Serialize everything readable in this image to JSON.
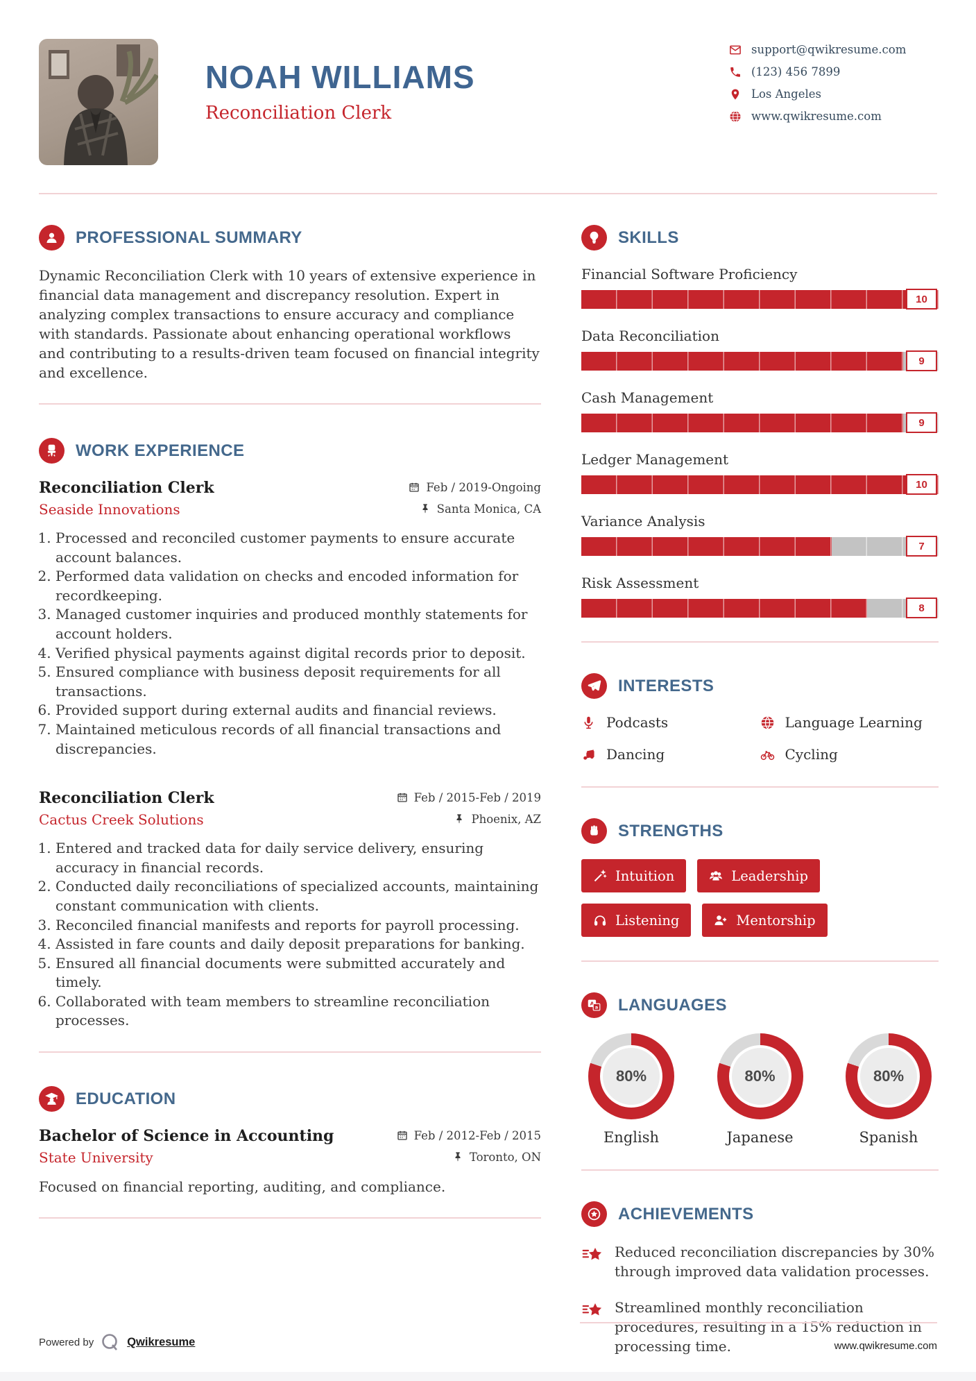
{
  "colors": {
    "accent": "#c5252c",
    "heading_blue": "#44688c",
    "name_blue": "#3f6591",
    "divider_pink": "#f2d2d5",
    "bar_track_gray": "#c3c3c3",
    "donut_gray": "#d9d9d9"
  },
  "header": {
    "name": "NOAH WILLIAMS",
    "title": "Reconciliation Clerk",
    "contact": [
      {
        "icon": "email-icon",
        "text": "support@qwikresume.com"
      },
      {
        "icon": "phone-icon",
        "text": "(123) 456 7899"
      },
      {
        "icon": "location-icon",
        "text": "Los Angeles"
      },
      {
        "icon": "globe-icon",
        "text": "www.qwikresume.com"
      }
    ]
  },
  "summary": {
    "heading": "PROFESSIONAL SUMMARY",
    "text": "Dynamic Reconciliation Clerk with 10 years of extensive experience in financial data management and discrepancy resolution. Expert in analyzing complex transactions to ensure accuracy and compliance with standards. Passionate about enhancing operational workflows and contributing to a results-driven team focused on financial integrity and excellence."
  },
  "work": {
    "heading": "WORK EXPERIENCE",
    "jobs": [
      {
        "title": "Reconciliation Clerk",
        "company": "Seaside Innovations",
        "dates": "Feb / 2019-Ongoing",
        "location": "Santa Monica, CA",
        "bullets": [
          "Processed and reconciled customer payments to ensure accurate account balances.",
          "Performed data validation on checks and encoded information for recordkeeping.",
          "Managed customer inquiries and produced monthly statements for account holders.",
          "Verified physical payments against digital records prior to deposit.",
          "Ensured compliance with business deposit requirements for all transactions.",
          "Provided support during external audits and financial reviews.",
          "Maintained meticulous records of all financial transactions and discrepancies."
        ]
      },
      {
        "title": "Reconciliation Clerk",
        "company": "Cactus Creek Solutions",
        "dates": "Feb / 2015-Feb / 2019",
        "location": "Phoenix, AZ",
        "bullets": [
          "Entered and tracked data for daily service delivery, ensuring accuracy in financial records.",
          "Conducted daily reconciliations of specialized accounts, maintaining constant communication with clients.",
          "Reconciled financial manifests and reports for payroll processing.",
          "Assisted in fare counts and daily deposit preparations for banking.",
          "Ensured all financial documents were submitted accurately and timely.",
          "Collaborated with team members to streamline reconciliation processes."
        ]
      }
    ]
  },
  "education": {
    "heading": "EDUCATION",
    "degree": "Bachelor of Science in Accounting",
    "school": "State University",
    "dates": "Feb / 2012-Feb / 2015",
    "location": "Toronto, ON",
    "note": "Focused on financial reporting, auditing, and compliance."
  },
  "skills": {
    "heading": "SKILLS",
    "items": [
      {
        "name": "Financial Software Proficiency",
        "value": 10,
        "max": 10
      },
      {
        "name": "Data Reconciliation",
        "value": 9,
        "max": 10
      },
      {
        "name": "Cash Management",
        "value": 9,
        "max": 10
      },
      {
        "name": "Ledger Management",
        "value": 10,
        "max": 10
      },
      {
        "name": "Variance Analysis",
        "value": 7,
        "max": 10
      },
      {
        "name": "Risk Assessment",
        "value": 8,
        "max": 10
      }
    ]
  },
  "interests": {
    "heading": "INTERESTS",
    "items": [
      {
        "icon": "microphone-icon",
        "label": "Podcasts"
      },
      {
        "icon": "globe-icon",
        "label": "Language Learning"
      },
      {
        "icon": "music-note-icon",
        "label": "Dancing"
      },
      {
        "icon": "bicycle-icon",
        "label": "Cycling"
      }
    ]
  },
  "strengths": {
    "heading": "STRENGTHS",
    "items": [
      {
        "icon": "magic-wand-icon",
        "label": "Intuition"
      },
      {
        "icon": "users-icon",
        "label": "Leadership"
      },
      {
        "icon": "headphones-icon",
        "label": "Listening"
      },
      {
        "icon": "person-plus-icon",
        "label": "Mentorship"
      }
    ]
  },
  "languages": {
    "heading": "LANGUAGES",
    "items": [
      {
        "label": "English",
        "percent": 80,
        "percent_label": "80%"
      },
      {
        "label": "Japanese",
        "percent": 80,
        "percent_label": "80%"
      },
      {
        "label": "Spanish",
        "percent": 80,
        "percent_label": "80%"
      }
    ]
  },
  "achievements": {
    "heading": "ACHIEVEMENTS",
    "items": [
      "Reduced reconciliation discrepancies by 30% through improved data validation processes.",
      "Streamlined monthly reconciliation procedures, resulting in a 15% reduction in processing time."
    ]
  },
  "footer": {
    "powered_by": "Powered by",
    "brand": "Qwikresume",
    "site": "www.qwikresume.com"
  }
}
